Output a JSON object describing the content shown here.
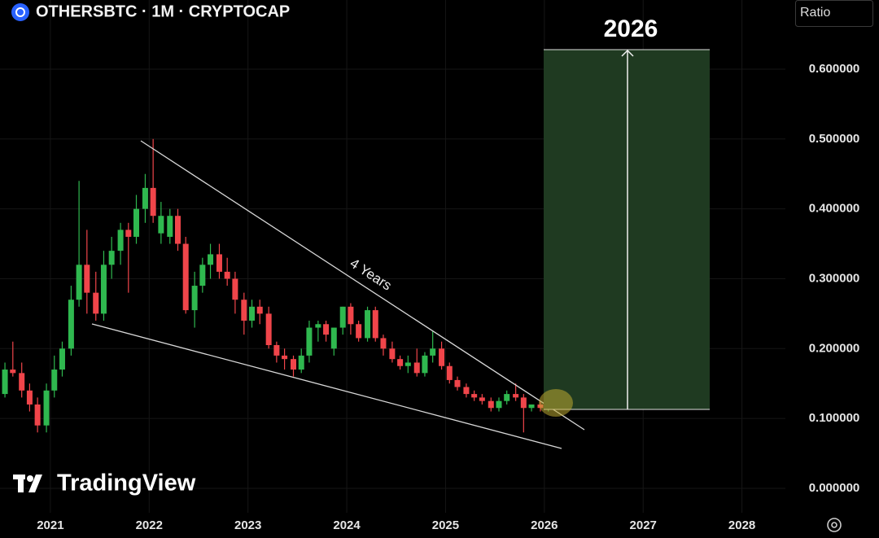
{
  "chart_data": {
    "type": "candlestick",
    "title": "OTHERSBTC · 1M · CRYPTOCAP",
    "scale_label": "Ratio",
    "brand": "TradingView",
    "annotations": {
      "target_label": "2026",
      "channel_label": "4 Years"
    },
    "up_color": "#2fb84f",
    "down_color": "#f0454a",
    "grid": true,
    "xlim": [
      2020.49,
      2028.44
    ],
    "xticks": [
      2021,
      2022,
      2023,
      2024,
      2025,
      2026,
      2027,
      2028
    ],
    "ylim": [
      -0.035,
      0.699
    ],
    "yticks": [
      {
        "value": 0,
        "label": "0.000000"
      },
      {
        "value": 0.1,
        "label": "0.100000"
      },
      {
        "value": 0.2,
        "label": "0.200000"
      },
      {
        "value": 0.3,
        "label": "0.300000"
      },
      {
        "value": 0.4,
        "label": "0.400000"
      },
      {
        "value": 0.5,
        "label": "0.500000"
      },
      {
        "value": 0.6,
        "label": "0.600000"
      }
    ],
    "x": [
      2020.54,
      2020.62,
      2020.71,
      2020.79,
      2020.87,
      2020.96,
      2021.04,
      2021.12,
      2021.21,
      2021.29,
      2021.37,
      2021.46,
      2021.54,
      2021.62,
      2021.71,
      2021.79,
      2021.87,
      2021.96,
      2022.04,
      2022.12,
      2022.21,
      2022.29,
      2022.37,
      2022.46,
      2022.54,
      2022.62,
      2022.71,
      2022.79,
      2022.87,
      2022.96,
      2023.04,
      2023.12,
      2023.21,
      2023.29,
      2023.37,
      2023.46,
      2023.54,
      2023.62,
      2023.71,
      2023.79,
      2023.87,
      2023.96,
      2024.04,
      2024.12,
      2024.21,
      2024.29,
      2024.37,
      2024.46,
      2024.54,
      2024.62,
      2024.71,
      2024.79,
      2024.87,
      2024.96,
      2025.04,
      2025.12,
      2025.21,
      2025.29,
      2025.37,
      2025.46,
      2025.54,
      2025.62,
      2025.71,
      2025.79,
      2025.87,
      2025.96,
      2026.04,
      2026.12
    ],
    "open": [
      0.135,
      0.17,
      0.165,
      0.14,
      0.12,
      0.09,
      0.14,
      0.17,
      0.2,
      0.27,
      0.32,
      0.28,
      0.25,
      0.32,
      0.34,
      0.37,
      0.36,
      0.4,
      0.43,
      0.365,
      0.36,
      0.39,
      0.35,
      0.255,
      0.29,
      0.32,
      0.335,
      0.31,
      0.3,
      0.27,
      0.24,
      0.26,
      0.25,
      0.205,
      0.19,
      0.185,
      0.17,
      0.19,
      0.23,
      0.235,
      0.2,
      0.23,
      0.26,
      0.235,
      0.215,
      0.255,
      0.215,
      0.2,
      0.185,
      0.175,
      0.18,
      0.165,
      0.19,
      0.2,
      0.175,
      0.155,
      0.145,
      0.135,
      0.13,
      0.125,
      0.115,
      0.125,
      0.135,
      0.13,
      0.115,
      0.12,
      0.115,
      0.125
    ],
    "high": [
      0.18,
      0.21,
      0.18,
      0.15,
      0.13,
      0.15,
      0.19,
      0.21,
      0.29,
      0.44,
      0.37,
      0.31,
      0.34,
      0.36,
      0.38,
      0.38,
      0.42,
      0.45,
      0.5,
      0.41,
      0.4,
      0.4,
      0.36,
      0.31,
      0.33,
      0.35,
      0.35,
      0.33,
      0.31,
      0.28,
      0.27,
      0.27,
      0.26,
      0.21,
      0.2,
      0.19,
      0.2,
      0.24,
      0.24,
      0.24,
      0.23,
      0.26,
      0.265,
      0.24,
      0.26,
      0.26,
      0.22,
      0.21,
      0.19,
      0.19,
      0.2,
      0.195,
      0.225,
      0.21,
      0.18,
      0.16,
      0.15,
      0.14,
      0.135,
      0.13,
      0.13,
      0.14,
      0.15,
      0.135,
      0.12,
      0.125,
      0.13,
      0.13
    ],
    "low": [
      0.13,
      0.16,
      0.13,
      0.11,
      0.08,
      0.08,
      0.13,
      0.16,
      0.19,
      0.26,
      0.25,
      0.24,
      0.24,
      0.3,
      0.32,
      0.28,
      0.35,
      0.38,
      0.38,
      0.35,
      0.35,
      0.34,
      0.25,
      0.23,
      0.28,
      0.3,
      0.3,
      0.29,
      0.25,
      0.22,
      0.23,
      0.235,
      0.2,
      0.18,
      0.17,
      0.16,
      0.165,
      0.18,
      0.21,
      0.21,
      0.19,
      0.22,
      0.22,
      0.21,
      0.21,
      0.21,
      0.19,
      0.18,
      0.17,
      0.165,
      0.16,
      0.16,
      0.18,
      0.17,
      0.15,
      0.14,
      0.13,
      0.125,
      0.12,
      0.11,
      0.11,
      0.12,
      0.125,
      0.08,
      0.11,
      0.11,
      0.11,
      0.12
    ],
    "close": [
      0.17,
      0.165,
      0.14,
      0.12,
      0.09,
      0.14,
      0.17,
      0.2,
      0.27,
      0.32,
      0.28,
      0.25,
      0.32,
      0.34,
      0.37,
      0.36,
      0.4,
      0.43,
      0.39,
      0.39,
      0.39,
      0.35,
      0.255,
      0.29,
      0.32,
      0.335,
      0.31,
      0.3,
      0.27,
      0.24,
      0.26,
      0.25,
      0.205,
      0.19,
      0.185,
      0.17,
      0.19,
      0.23,
      0.235,
      0.22,
      0.23,
      0.26,
      0.235,
      0.215,
      0.255,
      0.215,
      0.2,
      0.185,
      0.175,
      0.18,
      0.165,
      0.19,
      0.2,
      0.175,
      0.155,
      0.145,
      0.135,
      0.13,
      0.125,
      0.115,
      0.125,
      0.135,
      0.13,
      0.115,
      0.12,
      0.115,
      0.125,
      0.12
    ]
  }
}
